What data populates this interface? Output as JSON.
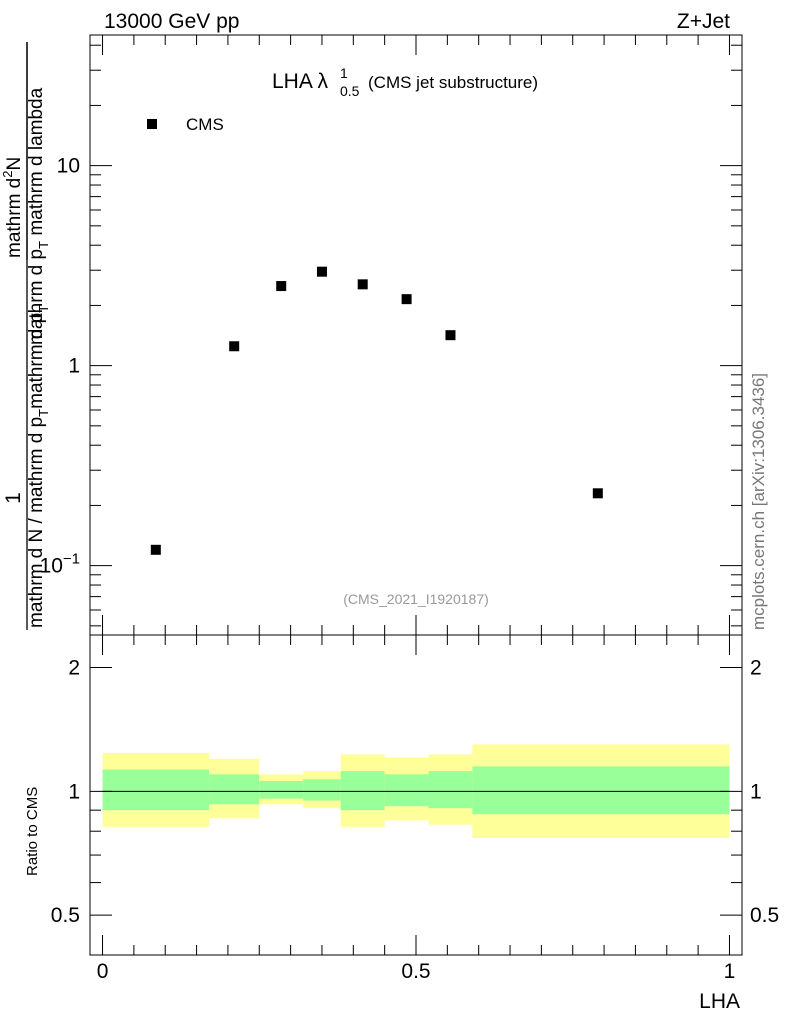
{
  "header": {
    "energy_label": "13000 GeV pp",
    "process_label": "Z+Jet"
  },
  "watermark": "mcplots.cern.ch [arXiv:1306.3436]",
  "analysis_tag": "(CMS_2021_I1920187)",
  "chart_data": [
    {
      "type": "scatter",
      "panel": "main",
      "title_main": "LHA λ",
      "title_sup": "1",
      "title_sub": "0.5",
      "title_extra": "(CMS jet substructure)",
      "ylabel_numer_top": "mathrm d",
      "ylabel_numer_sup": "2",
      "ylabel_numer_rest": "N",
      "ylabel_denom_a": "mathrm d p",
      "ylabel_denom_a_sub": "T",
      "ylabel_denom_b": " mathrm d lambda",
      "ylabel_prefix_top": "1",
      "ylabel_prefix_bottom_a": "mathrm d N / mathrm d p",
      "ylabel_prefix_bottom_sub": "T",
      "ylabel_prefix_bottom_b": "mathrm d p",
      "ylabel_prefix_bottom_sub2": "T",
      "yscale": "log",
      "ylim": [
        0.045,
        45
      ],
      "xlim": [
        -0.02,
        1.02
      ],
      "y_tick_labels": [
        {
          "value": 0.1,
          "mantissa": "10",
          "exponent": "−1"
        },
        {
          "value": 1,
          "mantissa": "1",
          "exponent": ""
        },
        {
          "value": 10,
          "mantissa": "10",
          "exponent": ""
        }
      ],
      "legend": {
        "placement": "top-left",
        "entries": [
          "CMS"
        ]
      },
      "series": [
        {
          "name": "CMS",
          "marker": "square",
          "color": "#000000",
          "x": [
            0.085,
            0.21,
            0.285,
            0.35,
            0.415,
            0.485,
            0.555,
            0.79
          ],
          "y": [
            0.12,
            1.25,
            2.5,
            2.95,
            2.55,
            2.15,
            1.42,
            0.23
          ]
        }
      ]
    },
    {
      "type": "area",
      "panel": "ratio",
      "ylabel": "Ratio to CMS",
      "xlabel": "LHA",
      "yscale": "log",
      "ylim": [
        0.4,
        2.4
      ],
      "xlim": [
        -0.02,
        1.02
      ],
      "x_tick_labels": [
        {
          "value": 0,
          "label": "0"
        },
        {
          "value": 0.5,
          "label": "0.5"
        },
        {
          "value": 1,
          "label": "1"
        }
      ],
      "y_tick_labels": [
        {
          "value": 0.5,
          "label": "0.5"
        },
        {
          "value": 1,
          "label": "1"
        },
        {
          "value": 2,
          "label": "2"
        }
      ],
      "reference_line": 1,
      "bands": [
        {
          "x0": 0.0,
          "x1": 0.17,
          "outer": [
            0.82,
            1.24
          ],
          "inner": [
            0.9,
            1.13
          ]
        },
        {
          "x0": 0.17,
          "x1": 0.25,
          "outer": [
            0.86,
            1.2
          ],
          "inner": [
            0.93,
            1.1
          ]
        },
        {
          "x0": 0.25,
          "x1": 0.32,
          "outer": [
            0.93,
            1.1
          ],
          "inner": [
            0.96,
            1.06
          ]
        },
        {
          "x0": 0.32,
          "x1": 0.38,
          "outer": [
            0.91,
            1.12
          ],
          "inner": [
            0.95,
            1.07
          ]
        },
        {
          "x0": 0.38,
          "x1": 0.45,
          "outer": [
            0.82,
            1.23
          ],
          "inner": [
            0.9,
            1.12
          ]
        },
        {
          "x0": 0.45,
          "x1": 0.52,
          "outer": [
            0.85,
            1.21
          ],
          "inner": [
            0.92,
            1.1
          ]
        },
        {
          "x0": 0.52,
          "x1": 0.59,
          "outer": [
            0.83,
            1.23
          ],
          "inner": [
            0.91,
            1.12
          ]
        },
        {
          "x0": 0.59,
          "x1": 1.0,
          "outer": [
            0.77,
            1.3
          ],
          "inner": [
            0.88,
            1.15
          ]
        }
      ],
      "colors": {
        "outer": "#ffff99",
        "inner": "#99ff99"
      }
    }
  ]
}
